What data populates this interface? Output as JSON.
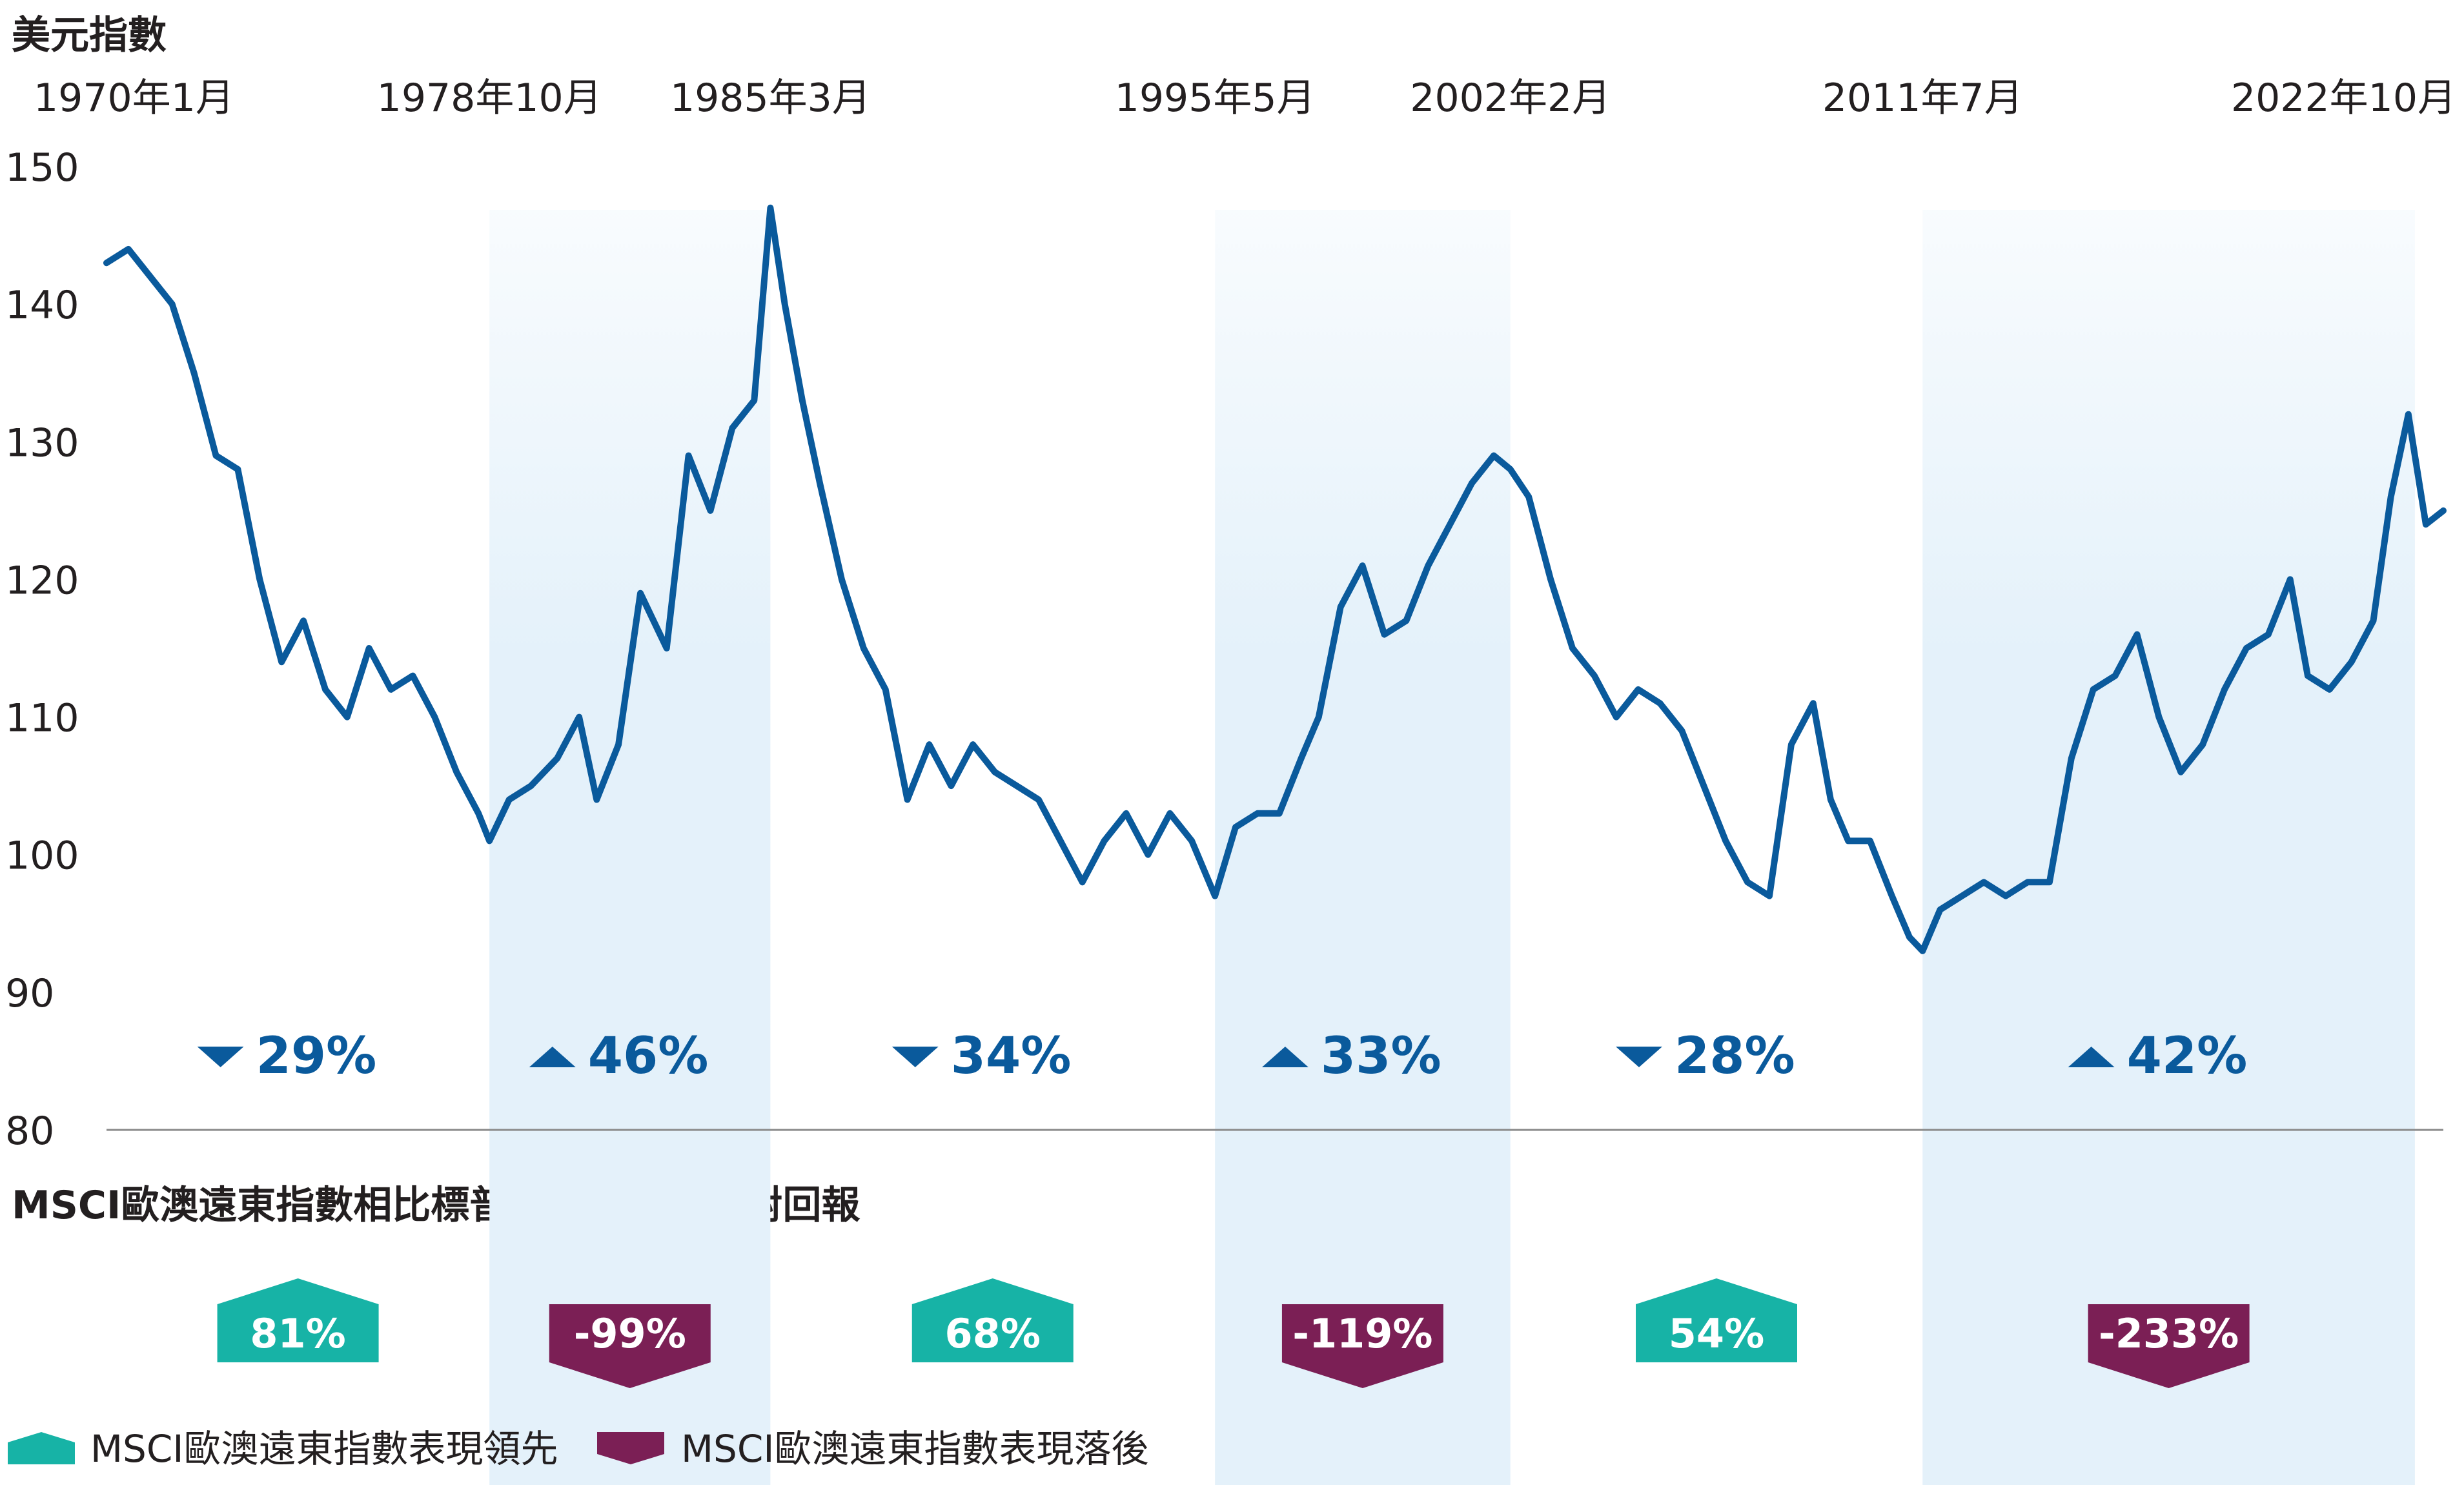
{
  "chart_data": {
    "type": "line",
    "title": "美元指數",
    "ylim": [
      80,
      150
    ],
    "yticks": [
      80,
      90,
      100,
      110,
      120,
      130,
      140,
      150
    ],
    "grid": false,
    "period_labels": [
      "1970年1月",
      "1978年10月",
      "1985年3月",
      "1995年5月",
      "2002年2月",
      "2011年7月",
      "2022年10月"
    ],
    "period_boundaries": [
      1970.0,
      1978.75,
      1985.17,
      1995.33,
      2002.08,
      2011.5,
      2022.75
    ],
    "x_end": 2023.4,
    "shaded_periods": [
      [
        1978.75,
        1985.17
      ],
      [
        1995.33,
        2002.08
      ],
      [
        2011.5,
        2022.75
      ]
    ],
    "series": [
      {
        "color": "#0a5a9c",
        "x": [
          1970.0,
          1970.5,
          1971.0,
          1971.5,
          1972.0,
          1972.5,
          1973.0,
          1973.5,
          1974.0,
          1974.5,
          1975.0,
          1975.5,
          1976.0,
          1976.5,
          1977.0,
          1977.5,
          1978.0,
          1978.5,
          1978.75,
          1979.2,
          1979.7,
          1980.3,
          1980.8,
          1981.2,
          1981.7,
          1982.2,
          1982.8,
          1983.3,
          1983.8,
          1984.3,
          1984.8,
          1985.17,
          1985.5,
          1985.9,
          1986.3,
          1986.8,
          1987.3,
          1987.8,
          1988.3,
          1988.8,
          1989.3,
          1989.8,
          1990.3,
          1990.8,
          1991.3,
          1991.8,
          1992.3,
          1992.8,
          1993.3,
          1993.8,
          1994.3,
          1994.8,
          1995.33,
          1995.8,
          1996.3,
          1996.8,
          1997.3,
          1997.7,
          1998.2,
          1998.7,
          1999.2,
          1999.7,
          2000.2,
          2000.7,
          2001.2,
          2001.7,
          2002.08,
          2002.5,
          2003.0,
          2003.5,
          2004.0,
          2004.5,
          2005.0,
          2005.5,
          2006.0,
          2006.5,
          2007.0,
          2007.5,
          2008.0,
          2008.5,
          2009.0,
          2009.4,
          2009.8,
          2010.3,
          2010.8,
          2011.2,
          2011.5,
          2011.9,
          2012.4,
          2012.9,
          2013.4,
          2013.9,
          2014.4,
          2014.9,
          2015.4,
          2015.9,
          2016.4,
          2016.9,
          2017.4,
          2017.9,
          2018.4,
          2018.9,
          2019.4,
          2019.9,
          2020.3,
          2020.8,
          2021.3,
          2021.8,
          2022.2,
          2022.6,
          2022.75,
          2023.0,
          2023.4
        ],
        "y": [
          143,
          144,
          142,
          140,
          135,
          129,
          128,
          120,
          114,
          117,
          112,
          110,
          115,
          112,
          113,
          110,
          106,
          103,
          101,
          104,
          105,
          107,
          110,
          104,
          108,
          119,
          115,
          129,
          125,
          131,
          133,
          147,
          140,
          133,
          127,
          120,
          115,
          112,
          104,
          108,
          105,
          108,
          106,
          105,
          104,
          101,
          98,
          101,
          103,
          100,
          103,
          101,
          97,
          102,
          103,
          103,
          107,
          110,
          118,
          121,
          116,
          117,
          121,
          124,
          127,
          129,
          128,
          126,
          120,
          115,
          113,
          110,
          112,
          111,
          109,
          105,
          101,
          98,
          97,
          108,
          111,
          104,
          101,
          101,
          97,
          94,
          93,
          96,
          97,
          98,
          97,
          98,
          98,
          107,
          112,
          113,
          116,
          110,
          106,
          108,
          112,
          115,
          116,
          120,
          113,
          112,
          114,
          117,
          126,
          132,
          129,
          124,
          125
        ]
      }
    ],
    "annotations": [
      {
        "direction": "down",
        "text": "29%"
      },
      {
        "direction": "up",
        "text": "46%"
      },
      {
        "direction": "down",
        "text": "34%"
      },
      {
        "direction": "up",
        "text": "33%"
      },
      {
        "direction": "down",
        "text": "28%"
      },
      {
        "direction": "up",
        "text": "42%"
      }
    ],
    "relative_returns": {
      "title": "MSCI歐澳遠東指數相比標普500指數的相對回報",
      "values": [
        {
          "text": "81%",
          "kind": "lead"
        },
        {
          "text": "-99%",
          "kind": "lag"
        },
        {
          "text": "68%",
          "kind": "lead"
        },
        {
          "text": "-119%",
          "kind": "lag"
        },
        {
          "text": "54%",
          "kind": "lead"
        },
        {
          "text": "-233%",
          "kind": "lag"
        }
      ]
    },
    "legend": [
      {
        "key": "lead",
        "label": "MSCI歐澳遠東指數表現領先",
        "color": "#17b3a6"
      },
      {
        "key": "lag",
        "label": "MSCI歐澳遠東指數表現落後",
        "color": "#7b1f55"
      }
    ],
    "colors": {
      "line": "#0a5a9c",
      "arrow": "#0a5a9c",
      "shade": "#e4f1fa",
      "lead": "#17b3a6",
      "lag": "#7b1f55"
    }
  }
}
